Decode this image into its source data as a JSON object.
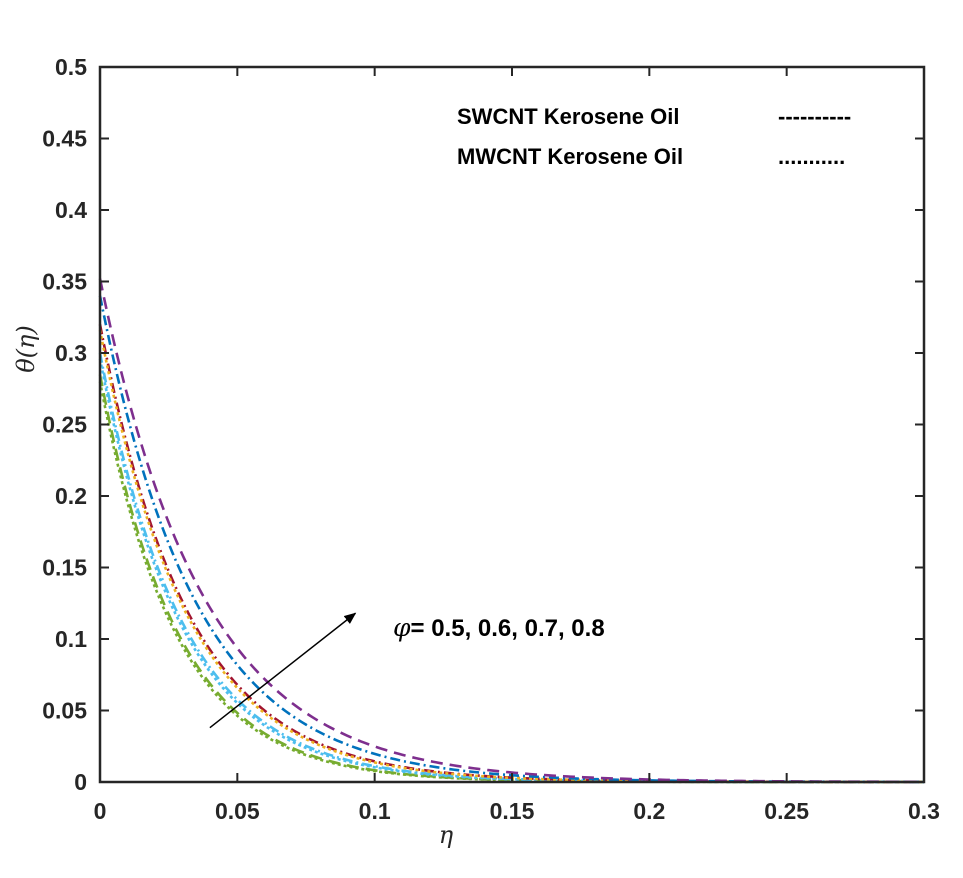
{
  "chart_data": {
    "type": "line",
    "title": "",
    "xlabel": "η",
    "ylabel": "θ(η)",
    "xlim": [
      0,
      0.3
    ],
    "ylim": [
      0,
      0.5
    ],
    "x_ticks": [
      "0",
      "0.05",
      "0.1",
      "0.15",
      "0.2",
      "0.25",
      "0.3"
    ],
    "y_ticks": [
      "0",
      "0.05",
      "0.1",
      "0.15",
      "0.2",
      "0.25",
      "0.3",
      "0.35",
      "0.4",
      "0.45",
      "0.5"
    ],
    "grid": false,
    "legend": {
      "position": "top-right",
      "entries": [
        {
          "label": "SWCNT Kerosene Oil",
          "marker": "----------"
        },
        {
          "label": "MWCNT Kerosene Oil",
          "marker": "..........."
        }
      ]
    },
    "annotation": {
      "symbol": "φ",
      "text": "= 0.5, 0.6, 0.7, 0.8",
      "arrow_from": [
        0.04,
        0.038
      ],
      "arrow_to": [
        0.093,
        0.118
      ]
    },
    "series": [
      {
        "name": "SWCNT φ=0.5",
        "style": "dashed",
        "color": "#77AC30",
        "theta0": 0.285,
        "decay": 35.5
      },
      {
        "name": "MWCNT φ=0.5",
        "style": "dotted",
        "color": "#77AC30",
        "theta0": 0.28,
        "decay": 36.0
      },
      {
        "name": "SWCNT φ=0.6",
        "style": "dashdot",
        "color": "#4DBEEE",
        "theta0": 0.3,
        "decay": 33.0
      },
      {
        "name": "MWCNT φ=0.6",
        "style": "dotted",
        "color": "#4DBEEE",
        "theta0": 0.296,
        "decay": 33.6
      },
      {
        "name": "SWCNT φ=0.7",
        "style": "dashdot",
        "color": "#A2142F",
        "theta0": 0.32,
        "decay": 31.0
      },
      {
        "name": "MWCNT φ=0.7",
        "style": "dotted",
        "color": "#EDB120",
        "theta0": 0.316,
        "decay": 31.4
      },
      {
        "name": "SWCNT φ=0.8",
        "style": "dashdot",
        "color": "#0072BD",
        "theta0": 0.34,
        "decay": 28.5
      },
      {
        "name": "MWCNT φ=0.8",
        "style": "dashed",
        "color": "#7E2F8E",
        "theta0": 0.352,
        "decay": 26.5
      }
    ]
  }
}
